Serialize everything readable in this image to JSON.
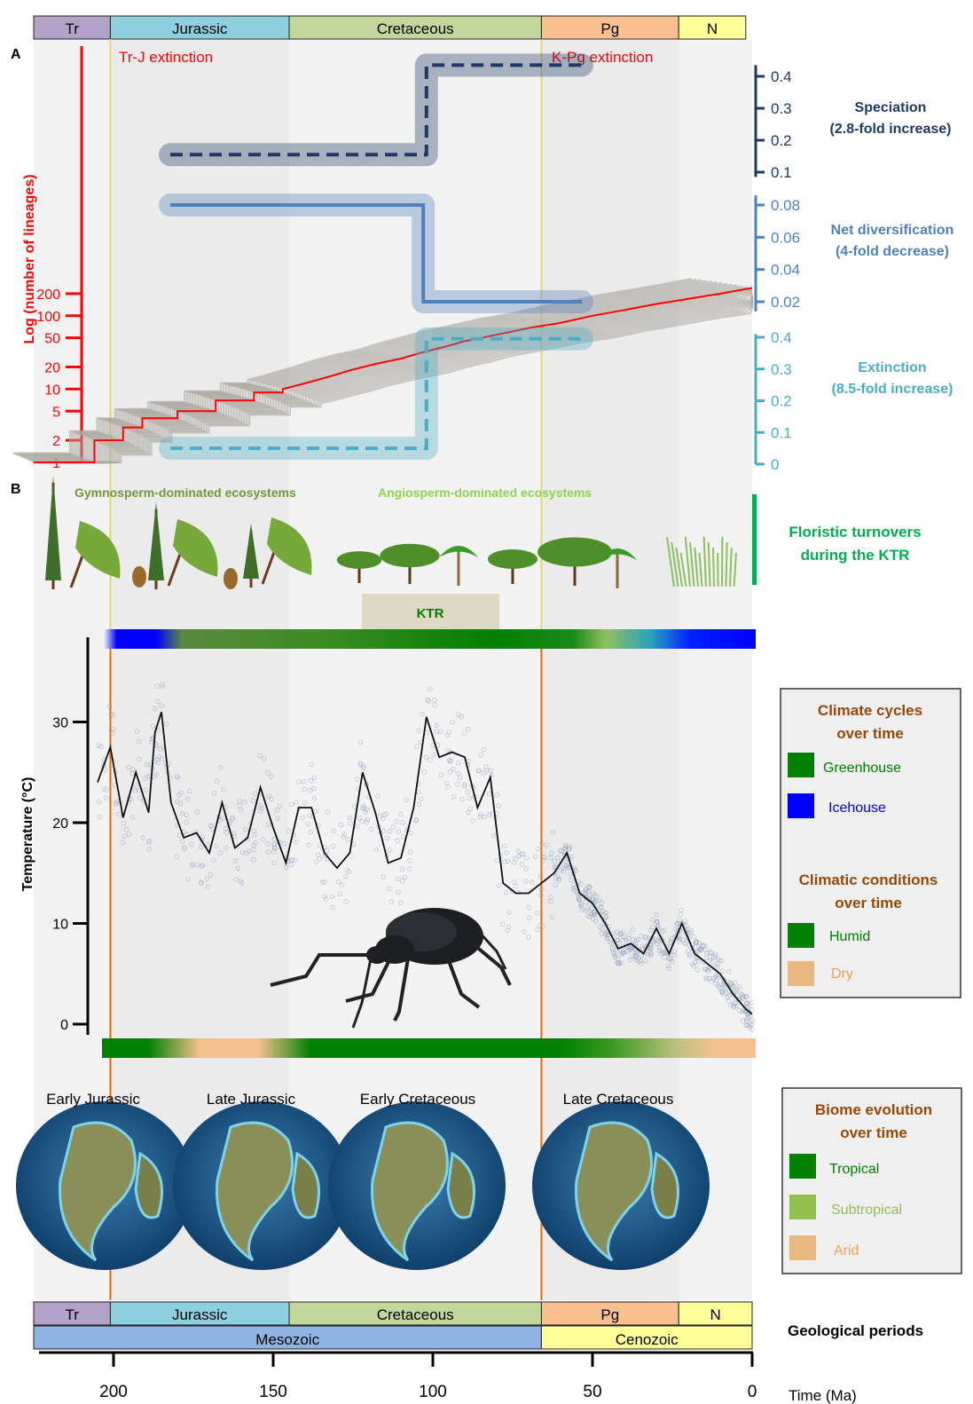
{
  "figure": {
    "panel_a_label": "A",
    "panel_b_label": "B",
    "colors": {
      "period_tr": "#b3a2c7",
      "period_jurassic": "#8fd0e0",
      "period_cretaceous": "#c3d69b",
      "period_pg": "#fac090",
      "period_n": "#ffff99",
      "era_mesozoic": "#8eb4e3",
      "era_cenozoic": "#ffff99",
      "ltt": "#ff0000",
      "ltt_uncertainty": "#aaa69f",
      "speciation": "#1f3864",
      "net_diversification": "#4f81bd",
      "extinction": "#4bacc6",
      "extinction_line": "#e46c0a",
      "greenhouse": "#008000",
      "icehouse": "#0000ff",
      "humid": "#008000",
      "dry": "#f5c08f",
      "tropical": "#008000",
      "subtropical": "#92c050",
      "arid": "#f5c08f",
      "gymnosperm": "#77933c",
      "angiosperm": "#92d050",
      "floristic": "#00b050",
      "legend_title": "#984806",
      "temp_points": "#8e9fbf",
      "temp_curve": "#000000"
    }
  },
  "timescale_top": {
    "periods": [
      {
        "label": "Tr",
        "start": 225,
        "end": 201
      },
      {
        "label": "Jurassic",
        "start": 201,
        "end": 145
      },
      {
        "label": "Cretaceous",
        "start": 145,
        "end": 66
      },
      {
        "label": "Pg",
        "start": 66,
        "end": 23
      },
      {
        "label": "N",
        "start": 23,
        "end": 2
      }
    ]
  },
  "timescale_bottom": {
    "periods": [
      {
        "label": "Tr",
        "start": 225,
        "end": 201
      },
      {
        "label": "Jurassic",
        "start": 201,
        "end": 145
      },
      {
        "label": "Cretaceous",
        "start": 145,
        "end": 66
      },
      {
        "label": "Pg",
        "start": 66,
        "end": 23
      },
      {
        "label": "N",
        "start": 23,
        "end": 0
      }
    ],
    "eras": [
      {
        "label": "Mesozoic",
        "start": 225,
        "end": 66
      },
      {
        "label": "Cenozoic",
        "start": 66,
        "end": 0
      }
    ],
    "label_periods": "Geological periods",
    "label_time": "Time (Ma)",
    "ticks": [
      "200",
      "150",
      "100",
      "50",
      "0"
    ]
  },
  "events": {
    "trj_label": "Tr-J extinction",
    "kpg_label": "K-Pg extinction",
    "trj_age": 201,
    "kpg_age": 66
  },
  "ltt": {
    "ylabel": "Log (number of lineages)",
    "yticks": [
      "200",
      "100",
      "50",
      "20",
      "10",
      "5",
      "2",
      "1"
    ]
  },
  "rates": {
    "speciation": {
      "label_line1": "Speciation",
      "label_line2": "(2.8-fold increase)",
      "ticks": [
        "0.4",
        "0.3",
        "0.2",
        "0.1"
      ],
      "before": 0.155,
      "after": 0.435,
      "shift_age": 102
    },
    "net_diversification": {
      "label_line1": "Net diversification",
      "label_line2": "(4-fold decrease)",
      "ticks": [
        "0.08",
        "0.06",
        "0.04",
        "0.02"
      ],
      "before": 0.08,
      "after": 0.02,
      "shift_age": 103
    },
    "extinction": {
      "label_line1": "Extinction",
      "label_line2": "(8.5-fold increase)",
      "ticks": [
        "0.4",
        "0.3",
        "0.2",
        "0.1",
        "0"
      ],
      "before": 0.05,
      "after": 0.395,
      "shift_age": 102
    }
  },
  "flora": {
    "gymno_label": "Gymnosperm-dominated ecosystems",
    "angio_label": "Angiosperm-dominated ecosystems",
    "turnover_line1": "Floristic turnovers",
    "turnover_line2": "during the KTR",
    "ktr_label": "KTR"
  },
  "temperature": {
    "ylabel": "Temperature (°C)",
    "yticks": [
      "30",
      "20",
      "10",
      "0"
    ]
  },
  "legend_climate": {
    "title_line1": "Climate cycles",
    "title_line2": "over time",
    "greenhouse": "Greenhouse",
    "icehouse": "Icehouse",
    "cond_title_line1": "Climatic conditions",
    "cond_title_line2": "over time",
    "humid": "Humid",
    "dry": "Dry"
  },
  "legend_biome": {
    "title_line1": "Biome evolution",
    "title_line2": "over time",
    "tropical": "Tropical",
    "subtropical": "Subtropical",
    "arid": "Arid"
  },
  "paleomaps": {
    "labels": [
      "Early Jurassic",
      "Late Jurassic",
      "Early Cretaceous",
      "Late Cretaceous"
    ]
  },
  "chart_data": [
    {
      "type": "line",
      "title": "",
      "xlabel": "Time (Ma)",
      "ylabel": "Log (number of lineages)",
      "y_scale": "log",
      "ylim": [
        1,
        250
      ],
      "xlim": [
        225,
        0
      ],
      "series": [
        {
          "x": [
            225,
            206,
            206,
            197,
            197,
            191,
            191,
            180,
            180,
            168,
            168,
            156,
            156,
            147,
            147,
            140,
            132,
            126,
            118,
            110,
            103,
            96,
            90,
            80,
            70,
            60,
            50,
            40,
            30,
            20,
            10,
            0
          ],
          "y": [
            1,
            1,
            2,
            2,
            3,
            3,
            4,
            4,
            5,
            5,
            7,
            7,
            9,
            9,
            10,
            12,
            15,
            18,
            22,
            26,
            32,
            38,
            45,
            55,
            68,
            80,
            100,
            120,
            145,
            170,
            200,
            240
          ]
        }
      ]
    },
    {
      "type": "line",
      "title": "",
      "xlabel": "Time (Ma)",
      "ylabel": "Temperature (°C)",
      "ylim": [
        0,
        36
      ],
      "xlim": [
        225,
        0
      ],
      "series": [
        {
          "x": [
            205,
            201,
            197,
            193,
            189,
            187,
            185,
            182,
            178,
            174,
            170,
            166,
            162,
            158,
            154,
            150,
            146,
            142,
            138,
            134,
            130,
            126,
            122,
            118,
            114,
            110,
            106,
            102,
            98,
            94,
            90,
            86,
            82,
            78,
            74,
            70,
            66,
            62,
            58,
            54,
            50,
            46,
            42,
            38,
            34,
            30,
            26,
            22,
            18,
            14,
            10,
            6,
            2,
            0
          ],
          "y": [
            24,
            27.5,
            20.5,
            25,
            21,
            29,
            31,
            22,
            18.5,
            19,
            17,
            22,
            17.5,
            18.5,
            23.5,
            19.5,
            16,
            21.5,
            21.5,
            17,
            15.5,
            17,
            25,
            21,
            16,
            16.5,
            21.5,
            30.5,
            26.5,
            27,
            26.5,
            21.5,
            24.5,
            14,
            13,
            13,
            14,
            15,
            17,
            13,
            12,
            10,
            7.5,
            8,
            7,
            9.5,
            7,
            10,
            7,
            6,
            5,
            3,
            1.5,
            1
          ]
        }
      ]
    }
  ]
}
